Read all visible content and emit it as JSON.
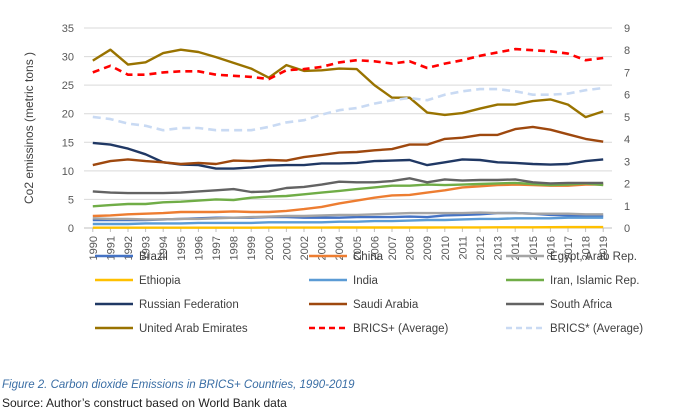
{
  "caption": "Figure 2. Carbon dioxide Emissions in BRICS+ Countries, 1990-2019",
  "source": "Source: Author’s construct based on World Bank data",
  "chart_data": {
    "type": "line",
    "title": "",
    "xlabel": "",
    "ylabel": "Co2 emissinos (metric tons )",
    "ylim": [
      0,
      35
    ],
    "y2lim": [
      0,
      9
    ],
    "yticks": [
      0,
      5,
      10,
      15,
      20,
      25,
      30,
      35
    ],
    "y2ticks": [
      0,
      1,
      2,
      3,
      4,
      5,
      6,
      7,
      8,
      9
    ],
    "grid": "horizontal",
    "legend_position": "bottom",
    "x": [
      "1990",
      "1991",
      "1992",
      "1993",
      "1994",
      "1995",
      "1996",
      "1997",
      "1998",
      "1999",
      "2000",
      "2001",
      "2002",
      "2003",
      "2004",
      "2005",
      "2006",
      "2007",
      "2008",
      "2009",
      "2010",
      "2011",
      "2012",
      "2013",
      "2014",
      "2015",
      "2016",
      "2017",
      "2018",
      "2019"
    ],
    "series": [
      {
        "name": "Brazil",
        "color": "#4472c4",
        "style": "solid",
        "axis": "left",
        "values": [
          1.4,
          1.4,
          1.4,
          1.4,
          1.5,
          1.6,
          1.7,
          1.8,
          1.8,
          1.8,
          1.9,
          1.9,
          1.8,
          1.8,
          1.8,
          1.9,
          1.9,
          1.9,
          2.0,
          1.9,
          2.2,
          2.3,
          2.4,
          2.6,
          2.6,
          2.5,
          2.3,
          2.2,
          2.1,
          2.1
        ]
      },
      {
        "name": "China",
        "color": "#ed7d31",
        "style": "solid",
        "axis": "left",
        "values": [
          2.1,
          2.2,
          2.4,
          2.5,
          2.6,
          2.8,
          2.8,
          2.8,
          2.9,
          2.8,
          2.8,
          3.0,
          3.3,
          3.7,
          4.3,
          4.8,
          5.3,
          5.7,
          5.8,
          6.2,
          6.6,
          7.1,
          7.3,
          7.5,
          7.6,
          7.5,
          7.4,
          7.4,
          7.6,
          7.6
        ]
      },
      {
        "name": "Egypt, Arab Rep.",
        "color": "#a5a5a5",
        "style": "solid",
        "axis": "left",
        "values": [
          1.7,
          1.6,
          1.6,
          1.5,
          1.5,
          1.6,
          1.6,
          1.7,
          1.8,
          1.9,
          2.0,
          2.1,
          2.1,
          2.2,
          2.3,
          2.3,
          2.4,
          2.5,
          2.6,
          2.6,
          2.6,
          2.6,
          2.7,
          2.6,
          2.6,
          2.5,
          2.5,
          2.5,
          2.4,
          2.4
        ]
      },
      {
        "name": "Ethiopia",
        "color": "#ffc000",
        "style": "solid",
        "axis": "left",
        "values": [
          0.05,
          0.05,
          0.05,
          0.05,
          0.05,
          0.05,
          0.05,
          0.06,
          0.06,
          0.06,
          0.07,
          0.07,
          0.07,
          0.07,
          0.08,
          0.08,
          0.08,
          0.08,
          0.09,
          0.09,
          0.1,
          0.1,
          0.11,
          0.12,
          0.13,
          0.13,
          0.14,
          0.15,
          0.16,
          0.16
        ]
      },
      {
        "name": "India",
        "color": "#5b9bd5",
        "style": "solid",
        "axis": "left",
        "values": [
          0.7,
          0.7,
          0.7,
          0.8,
          0.8,
          0.8,
          0.9,
          0.9,
          0.9,
          0.9,
          1.0,
          1.0,
          1.0,
          1.0,
          1.1,
          1.1,
          1.2,
          1.2,
          1.3,
          1.4,
          1.4,
          1.5,
          1.6,
          1.6,
          1.7,
          1.7,
          1.7,
          1.8,
          1.8,
          1.8
        ]
      },
      {
        "name": "Iran, Islamic Rep.",
        "color": "#70ad47",
        "style": "solid",
        "axis": "left",
        "values": [
          3.8,
          4.0,
          4.2,
          4.2,
          4.5,
          4.6,
          4.8,
          5.0,
          4.9,
          5.3,
          5.5,
          5.6,
          5.9,
          6.2,
          6.5,
          6.8,
          7.1,
          7.4,
          7.4,
          7.6,
          7.5,
          7.6,
          7.7,
          7.8,
          7.9,
          7.7,
          7.5,
          7.6,
          7.8,
          7.5
        ]
      },
      {
        "name": "Russian Federation",
        "color": "#203864",
        "style": "solid",
        "axis": "left",
        "values": [
          14.9,
          14.6,
          13.9,
          12.9,
          11.5,
          11.1,
          11.0,
          10.4,
          10.4,
          10.6,
          10.9,
          11.0,
          11.0,
          11.3,
          11.3,
          11.4,
          11.7,
          11.8,
          11.9,
          11.0,
          11.5,
          12.0,
          11.9,
          11.5,
          11.4,
          11.2,
          11.1,
          11.2,
          11.7,
          12.0
        ]
      },
      {
        "name": "Saudi Arabia",
        "color": "#9e480e",
        "style": "solid",
        "axis": "left",
        "values": [
          11.0,
          11.7,
          12.0,
          11.7,
          11.5,
          11.2,
          11.4,
          11.2,
          11.8,
          11.7,
          11.9,
          11.8,
          12.4,
          12.8,
          13.2,
          13.3,
          13.6,
          13.8,
          14.6,
          14.6,
          15.6,
          15.8,
          16.3,
          16.3,
          17.3,
          17.7,
          17.2,
          16.4,
          15.6,
          15.1
        ]
      },
      {
        "name": "South Africa",
        "color": "#636363",
        "style": "solid",
        "axis": "left",
        "values": [
          6.4,
          6.2,
          6.1,
          6.1,
          6.1,
          6.2,
          6.4,
          6.6,
          6.8,
          6.3,
          6.4,
          7.0,
          7.2,
          7.6,
          8.1,
          8.0,
          8.0,
          8.2,
          8.7,
          8.0,
          8.5,
          8.3,
          8.4,
          8.4,
          8.5,
          8.0,
          7.8,
          7.9,
          7.9,
          7.9
        ]
      },
      {
        "name": "United Arab Emirates",
        "color": "#997300",
        "style": "solid",
        "axis": "left",
        "values": [
          29.3,
          31.2,
          28.6,
          29.0,
          30.6,
          31.2,
          30.8,
          29.9,
          28.9,
          27.9,
          26.3,
          28.5,
          27.5,
          27.6,
          27.9,
          27.8,
          25.0,
          22.8,
          22.8,
          20.2,
          19.8,
          20.1,
          20.9,
          21.6,
          21.6,
          22.2,
          22.5,
          21.6,
          19.4,
          20.4
        ]
      },
      {
        "name": "BRICS+ (Average)",
        "color": "#ff0000",
        "style": "dashed",
        "axis": "right",
        "values": [
          7.0,
          7.3,
          6.9,
          6.9,
          7.0,
          7.05,
          7.05,
          6.9,
          6.85,
          6.8,
          6.7,
          7.1,
          7.15,
          7.25,
          7.45,
          7.55,
          7.5,
          7.4,
          7.5,
          7.2,
          7.4,
          7.55,
          7.75,
          7.9,
          8.05,
          8.0,
          7.95,
          7.85,
          7.55,
          7.65
        ]
      },
      {
        "name": "BRICS* (Average)",
        "color": "#c9daf3",
        "style": "dashed",
        "axis": "right",
        "values": [
          5.0,
          4.9,
          4.7,
          4.6,
          4.4,
          4.5,
          4.5,
          4.4,
          4.4,
          4.4,
          4.55,
          4.75,
          4.85,
          5.1,
          5.3,
          5.4,
          5.6,
          5.75,
          5.85,
          5.75,
          6.0,
          6.15,
          6.25,
          6.25,
          6.15,
          6.0,
          6.0,
          6.05,
          6.2,
          6.3
        ]
      }
    ]
  }
}
